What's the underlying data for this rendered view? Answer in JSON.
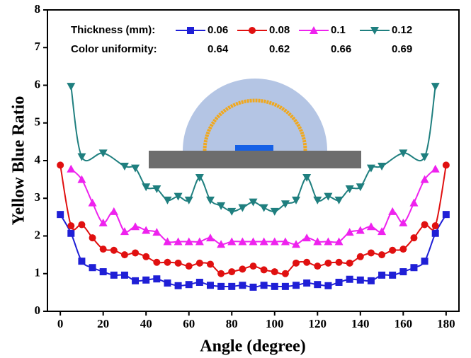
{
  "chart_data": {
    "type": "line",
    "xlabel": "Angle (degree)",
    "ylabel": "Yellow Blue Ratio",
    "legend_title": "Thickness (mm):",
    "uniformity_label": "Color uniformity:",
    "xlim": [
      -6,
      186
    ],
    "xticks": [
      0,
      20,
      40,
      60,
      80,
      100,
      120,
      140,
      160,
      180
    ],
    "ylim": [
      0,
      8
    ],
    "yticks": [
      0,
      1,
      2,
      3,
      4,
      5,
      6,
      7,
      8
    ],
    "series": [
      {
        "name": "0.06",
        "color": "#1f1fd6",
        "marker": "square",
        "uniformity": 0.64,
        "x": [
          0,
          5,
          10,
          15,
          20,
          25,
          30,
          35,
          40,
          45,
          50,
          55,
          60,
          65,
          70,
          75,
          80,
          85,
          90,
          95,
          100,
          105,
          110,
          115,
          120,
          125,
          130,
          135,
          140,
          145,
          150,
          155,
          160,
          165,
          170,
          175,
          180
        ],
        "values": [
          2.57,
          2.07,
          1.33,
          1.16,
          1.05,
          0.96,
          0.96,
          0.81,
          0.83,
          0.86,
          0.75,
          0.68,
          0.71,
          0.77,
          0.69,
          0.66,
          0.66,
          0.69,
          0.64,
          0.69,
          0.66,
          0.66,
          0.69,
          0.75,
          0.71,
          0.68,
          0.77,
          0.85,
          0.83,
          0.81,
          0.96,
          0.96,
          1.05,
          1.16,
          1.33,
          2.07,
          2.57
        ]
      },
      {
        "name": "0.08",
        "color": "#e01010",
        "marker": "circle",
        "uniformity": 0.62,
        "x": [
          0,
          5,
          10,
          15,
          20,
          25,
          30,
          35,
          40,
          45,
          50,
          55,
          60,
          65,
          70,
          75,
          80,
          85,
          90,
          95,
          100,
          105,
          110,
          115,
          120,
          125,
          130,
          135,
          140,
          145,
          150,
          155,
          160,
          165,
          170,
          175,
          180
        ],
        "values": [
          3.88,
          2.27,
          2.3,
          1.95,
          1.65,
          1.62,
          1.5,
          1.55,
          1.45,
          1.3,
          1.3,
          1.28,
          1.2,
          1.28,
          1.25,
          1.0,
          1.05,
          1.12,
          1.2,
          1.1,
          1.05,
          1.0,
          1.28,
          1.3,
          1.2,
          1.28,
          1.3,
          1.28,
          1.45,
          1.55,
          1.5,
          1.62,
          1.65,
          1.95,
          2.3,
          2.27,
          3.88
        ]
      },
      {
        "name": "0.1",
        "color": "#ee22ee",
        "marker": "triangle-up",
        "uniformity": 0.66,
        "x": [
          5,
          10,
          15,
          20,
          25,
          30,
          35,
          40,
          45,
          50,
          55,
          60,
          65,
          70,
          75,
          80,
          85,
          90,
          95,
          100,
          105,
          110,
          115,
          120,
          125,
          130,
          135,
          140,
          145,
          150,
          155,
          160,
          165,
          170,
          175
        ],
        "values": [
          3.78,
          3.5,
          2.88,
          2.35,
          2.65,
          2.12,
          2.25,
          2.15,
          2.1,
          1.85,
          1.85,
          1.85,
          1.85,
          1.95,
          1.78,
          1.85,
          1.85,
          1.85,
          1.85,
          1.85,
          1.85,
          1.78,
          1.95,
          1.85,
          1.85,
          1.85,
          2.1,
          2.15,
          2.25,
          2.12,
          2.65,
          2.35,
          2.88,
          3.5,
          3.78
        ]
      },
      {
        "name": "0.12",
        "color": "#1f7f7f",
        "marker": "triangle-down",
        "uniformity": 0.69,
        "x": [
          5,
          10,
          20,
          30,
          35,
          40,
          45,
          50,
          55,
          60,
          65,
          70,
          75,
          80,
          85,
          90,
          95,
          100,
          105,
          110,
          115,
          120,
          125,
          130,
          135,
          140,
          145,
          150,
          160,
          170,
          175
        ],
        "values": [
          5.97,
          4.1,
          4.2,
          3.85,
          3.8,
          3.3,
          3.25,
          2.95,
          3.05,
          2.95,
          3.55,
          2.95,
          2.8,
          2.65,
          2.75,
          2.9,
          2.75,
          2.65,
          2.85,
          2.95,
          3.55,
          2.95,
          3.05,
          2.95,
          3.25,
          3.3,
          3.8,
          3.85,
          4.2,
          4.1,
          5.97
        ]
      }
    ]
  }
}
